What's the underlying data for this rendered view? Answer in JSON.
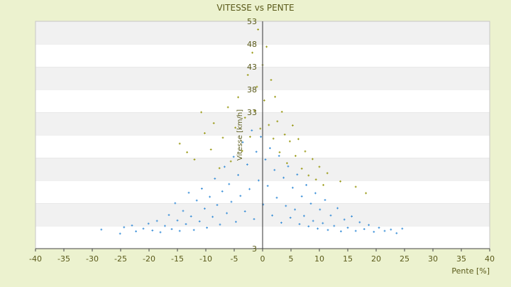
{
  "chart_data": {
    "type": "scatter",
    "title": "VITESSE vs PENTE",
    "xlabel": "Pente [%]",
    "ylabel": "Vitesse [km/h]",
    "xlim": [
      -40,
      40
    ],
    "ylim": [
      3,
      53
    ],
    "x_ticks": [
      -40,
      -35,
      -30,
      -25,
      -20,
      -15,
      -10,
      -5,
      0,
      5,
      10,
      15,
      20,
      25,
      30,
      35,
      40
    ],
    "y_ticks": [
      3,
      8,
      13,
      18,
      23,
      28,
      33,
      38,
      43,
      48,
      53
    ],
    "y_tick_labels": [
      "3",
      "",
      "",
      "",
      "",
      "",
      "33",
      "38",
      "43",
      "48",
      "53"
    ],
    "grid": "horizontal-bands",
    "legend": "none",
    "series": [
      {
        "color": "#3a8fd8",
        "points": [
          [
            -28.4,
            7.2
          ],
          [
            -25.1,
            6.3
          ],
          [
            -24.4,
            7.7
          ],
          [
            -23.0,
            8.1
          ],
          [
            -22.3,
            6.8
          ],
          [
            -21.0,
            7.4
          ],
          [
            -20.1,
            8.5
          ],
          [
            -19.4,
            7.0
          ],
          [
            -18.6,
            9.1
          ],
          [
            -18.0,
            6.6
          ],
          [
            -17.2,
            8.0
          ],
          [
            -16.5,
            10.4
          ],
          [
            -16.0,
            7.3
          ],
          [
            -15.4,
            13.0
          ],
          [
            -15.0,
            9.2
          ],
          [
            -14.6,
            6.9
          ],
          [
            -14.0,
            11.3
          ],
          [
            -13.5,
            8.4
          ],
          [
            -13.0,
            15.3
          ],
          [
            -12.6,
            10.1
          ],
          [
            -12.1,
            7.1
          ],
          [
            -11.6,
            13.6
          ],
          [
            -11.1,
            9.0
          ],
          [
            -10.7,
            16.2
          ],
          [
            -10.2,
            11.8
          ],
          [
            -9.8,
            7.6
          ],
          [
            -9.3,
            14.4
          ],
          [
            -8.8,
            10.0
          ],
          [
            -8.4,
            18.4
          ],
          [
            -8.0,
            12.6
          ],
          [
            -7.5,
            8.3
          ],
          [
            -7.1,
            15.6
          ],
          [
            -6.7,
            21.0
          ],
          [
            -6.3,
            10.8
          ],
          [
            -5.9,
            17.2
          ],
          [
            -5.5,
            13.3
          ],
          [
            -5.1,
            23.2
          ],
          [
            -4.7,
            8.9
          ],
          [
            -4.3,
            19.2
          ],
          [
            -3.9,
            14.6
          ],
          [
            -3.5,
            26.4
          ],
          [
            -3.1,
            11.2
          ],
          [
            -2.7,
            21.5
          ],
          [
            -2.3,
            16.1
          ],
          [
            -1.9,
            29.0
          ],
          [
            -1.5,
            9.5
          ],
          [
            -1.1,
            24.3
          ],
          [
            -0.7,
            18.0
          ],
          [
            -0.3,
            27.6
          ],
          [
            0.1,
            12.7
          ],
          [
            0.5,
            22.6
          ],
          [
            0.9,
            16.8
          ],
          [
            1.3,
            25.1
          ],
          [
            1.7,
            10.3
          ],
          [
            2.1,
            20.3
          ],
          [
            2.5,
            14.2
          ],
          [
            2.9,
            23.4
          ],
          [
            3.3,
            8.7
          ],
          [
            3.7,
            18.6
          ],
          [
            4.1,
            12.4
          ],
          [
            4.5,
            21.1
          ],
          [
            4.9,
            9.8
          ],
          [
            5.3,
            16.4
          ],
          [
            5.7,
            11.6
          ],
          [
            6.1,
            19.3
          ],
          [
            6.5,
            8.4
          ],
          [
            6.9,
            14.5
          ],
          [
            7.3,
            10.2
          ],
          [
            7.7,
            17.0
          ],
          [
            8.1,
            7.9
          ],
          [
            8.5,
            12.9
          ],
          [
            8.9,
            9.1
          ],
          [
            9.3,
            15.2
          ],
          [
            9.7,
            7.4
          ],
          [
            10.1,
            11.6
          ],
          [
            10.6,
            8.6
          ],
          [
            11.0,
            13.7
          ],
          [
            11.5,
            7.1
          ],
          [
            12.0,
            10.3
          ],
          [
            12.6,
            8.0
          ],
          [
            13.2,
            11.9
          ],
          [
            13.8,
            6.8
          ],
          [
            14.4,
            9.4
          ],
          [
            15.0,
            7.6
          ],
          [
            15.7,
            10.1
          ],
          [
            16.4,
            6.9
          ],
          [
            17.1,
            8.8
          ],
          [
            17.9,
            7.3
          ],
          [
            18.7,
            8.2
          ],
          [
            19.6,
            6.7
          ],
          [
            20.5,
            7.6
          ],
          [
            21.5,
            6.9
          ],
          [
            22.6,
            7.2
          ],
          [
            23.6,
            6.4
          ],
          [
            24.6,
            7.4
          ]
        ]
      },
      {
        "color": "#9a9a16",
        "points": [
          [
            -14.6,
            26.1
          ],
          [
            -13.3,
            24.2
          ],
          [
            -12.0,
            22.6
          ],
          [
            -10.8,
            33.0
          ],
          [
            -10.2,
            28.4
          ],
          [
            -9.1,
            24.8
          ],
          [
            -8.6,
            30.6
          ],
          [
            -7.6,
            20.7
          ],
          [
            -7.0,
            27.4
          ],
          [
            -6.1,
            34.1
          ],
          [
            -5.6,
            22.2
          ],
          [
            -4.8,
            29.6
          ],
          [
            -4.3,
            36.3
          ],
          [
            -3.6,
            24.5
          ],
          [
            -3.1,
            31.8
          ],
          [
            -2.6,
            41.2
          ],
          [
            -2.2,
            27.6
          ],
          [
            -1.8,
            46.1
          ],
          [
            -1.4,
            33.4
          ],
          [
            -1.0,
            38.6
          ],
          [
            -0.8,
            51.2
          ],
          [
            -0.4,
            29.4
          ],
          [
            0.0,
            43.4
          ],
          [
            0.3,
            35.6
          ],
          [
            0.7,
            47.4
          ],
          [
            1.1,
            30.2
          ],
          [
            1.5,
            40.1
          ],
          [
            1.9,
            27.2
          ],
          [
            2.2,
            36.4
          ],
          [
            2.6,
            31.0
          ],
          [
            3.0,
            24.2
          ],
          [
            3.4,
            33.1
          ],
          [
            3.9,
            28.1
          ],
          [
            4.3,
            21.8
          ],
          [
            4.8,
            26.6
          ],
          [
            5.3,
            30.1
          ],
          [
            5.8,
            23.4
          ],
          [
            6.3,
            27.1
          ],
          [
            6.9,
            20.6
          ],
          [
            7.5,
            24.4
          ],
          [
            8.1,
            19.1
          ],
          [
            8.8,
            22.7
          ],
          [
            9.4,
            18.2
          ],
          [
            10.0,
            21.0
          ],
          [
            10.7,
            17.0
          ],
          [
            11.4,
            19.6
          ],
          [
            13.7,
            17.8
          ],
          [
            16.4,
            16.6
          ],
          [
            18.2,
            15.2
          ]
        ]
      }
    ]
  }
}
